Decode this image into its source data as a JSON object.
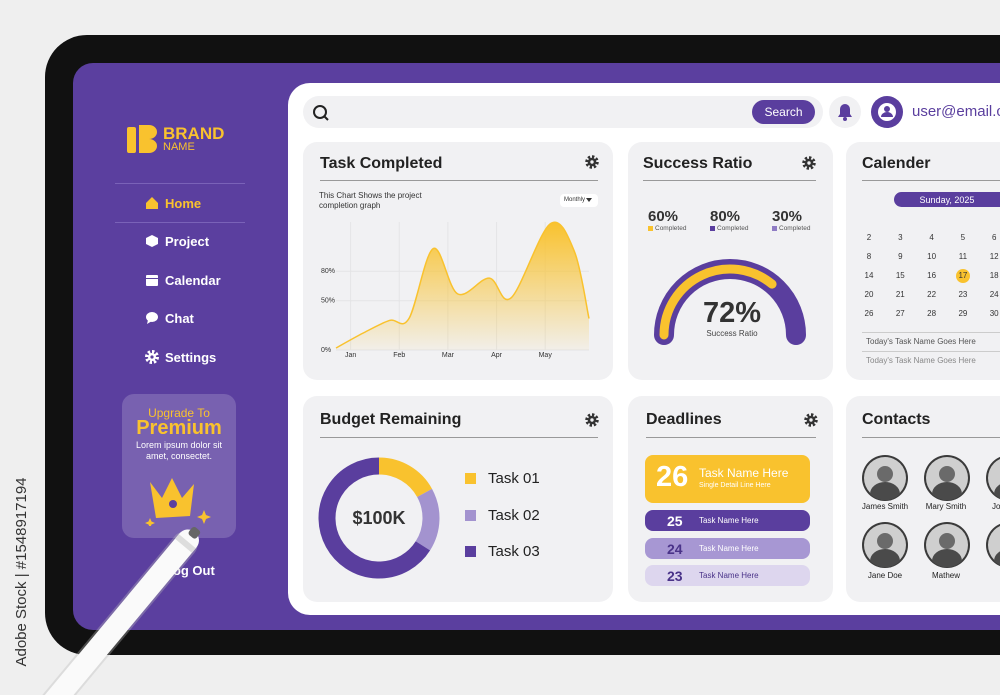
{
  "watermark": "Adobe Stock | #1548917194",
  "sidebar": {
    "brand": "BRAND",
    "brand_sub": "NAME",
    "nav": [
      "Home",
      "Project",
      "Calendar",
      "Chat",
      "Settings"
    ],
    "upgrade": {
      "line1": "Upgrade To",
      "title": "Premium",
      "text": "Lorem ipsum dolor sit amet, consectet."
    },
    "logout": "Log Out"
  },
  "topbar": {
    "search_button": "Search",
    "user": "user@email.com"
  },
  "task_completed": {
    "title": "Task Completed",
    "caption": "This Chart Shows the project completion graph",
    "dropdown": "Monthly",
    "chart_data": {
      "type": "area",
      "color": "#f9c22e",
      "x": [
        0.7,
        1.25,
        1.8,
        2.2,
        2.7,
        3.2,
        3.85,
        4.3,
        5.1,
        5.6,
        5.9
      ],
      "values": [
        2,
        17,
        30,
        32,
        103,
        57,
        73,
        53,
        128,
        100,
        32
      ],
      "xlim": [
        0.7,
        5.9
      ],
      "xticks": [
        {
          "value": 1,
          "label": "Jan"
        },
        {
          "value": 2,
          "label": "Feb"
        },
        {
          "value": 3,
          "label": "Mar"
        },
        {
          "value": 4,
          "label": "Apr"
        },
        {
          "value": 5,
          "label": "May"
        }
      ],
      "ylim": [
        0,
        130
      ],
      "yticks": [
        {
          "value": 0,
          "label": "0%"
        },
        {
          "value": 50,
          "label": "50%"
        },
        {
          "value": 80,
          "label": "80%"
        }
      ],
      "grid": true
    }
  },
  "success_ratio": {
    "title": "Success Ratio",
    "stats": [
      {
        "value": "60%",
        "label": "Completed",
        "color": "#f9c22e"
      },
      {
        "value": "80%",
        "label": "Completed",
        "color": "#5a3e9e"
      },
      {
        "value": "30%",
        "label": "Completed",
        "color": "#8f7cc4"
      }
    ],
    "gauge": {
      "value": 72,
      "label": "72%",
      "caption": "Success Ratio"
    }
  },
  "calendar": {
    "title": "Calender",
    "header": "Sunday, 2025",
    "days": [
      [
        2,
        3,
        4,
        5,
        6
      ],
      [
        8,
        9,
        10,
        11,
        12
      ],
      [
        14,
        15,
        16,
        17,
        18
      ],
      [
        20,
        21,
        22,
        23,
        24
      ],
      [
        26,
        27,
        28,
        29,
        30
      ]
    ],
    "today": 17,
    "tasks": [
      "Today's Task Name Goes Here",
      "Today's Task Name Goes Here"
    ]
  },
  "budget": {
    "title": "Budget Remaining",
    "center_label": "$100K",
    "chart_data": {
      "type": "donut",
      "categories": [
        "Task 01",
        "Task 02",
        "Task 03"
      ],
      "values": [
        17,
        17,
        66
      ],
      "colors": [
        "#f9c22e",
        "#a393cf",
        "#5a3e9e"
      ]
    }
  },
  "deadlines": {
    "title": "Deadlines",
    "items": [
      {
        "day": 26,
        "name": "Task Name Here",
        "detail": "Single Detail Line Here"
      },
      {
        "day": 25,
        "name": "Task Name Here"
      },
      {
        "day": 24,
        "name": "Task Name Here"
      },
      {
        "day": 23,
        "name": "Task Name Here"
      }
    ]
  },
  "contacts": {
    "title": "Contacts",
    "people": [
      "James Smith",
      "Mary Smith",
      "Jo",
      "Jane Doe",
      "Mathew"
    ]
  }
}
